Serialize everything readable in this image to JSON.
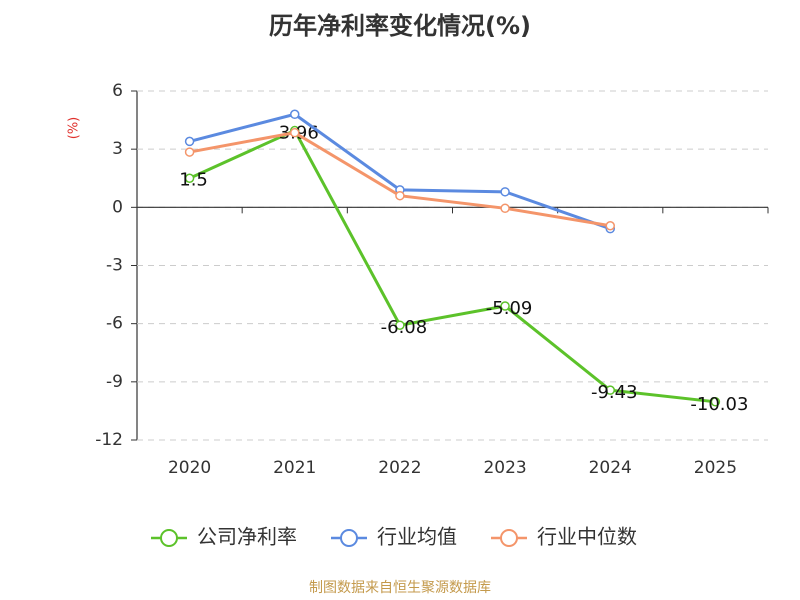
{
  "chart_data": {
    "type": "line",
    "title": "历年净利率变化情况(%)",
    "y_label": "(%)",
    "categories": [
      "2020",
      "2021",
      "2022",
      "2023",
      "2024",
      "2025"
    ],
    "series": [
      {
        "name": "公司净利率",
        "color": "#5cc22a",
        "values": [
          1.5,
          3.96,
          -6.08,
          -5.09,
          -9.43,
          -10.03
        ],
        "data_labels": true
      },
      {
        "name": "行业均值",
        "color": "#5b8ae0",
        "values": [
          3.4,
          4.8,
          0.9,
          0.8,
          -1.1,
          null
        ]
      },
      {
        "name": "行业中位数",
        "color": "#f4956a",
        "values": [
          2.85,
          3.85,
          0.6,
          -0.05,
          -0.95,
          null
        ]
      }
    ],
    "ylim": [
      -12,
      6
    ],
    "yticks": [
      6,
      3,
      0,
      -3,
      -6,
      -9,
      -12
    ],
    "grid": true,
    "legend": "bottom",
    "source": "制图数据来自恒生聚源数据库"
  }
}
